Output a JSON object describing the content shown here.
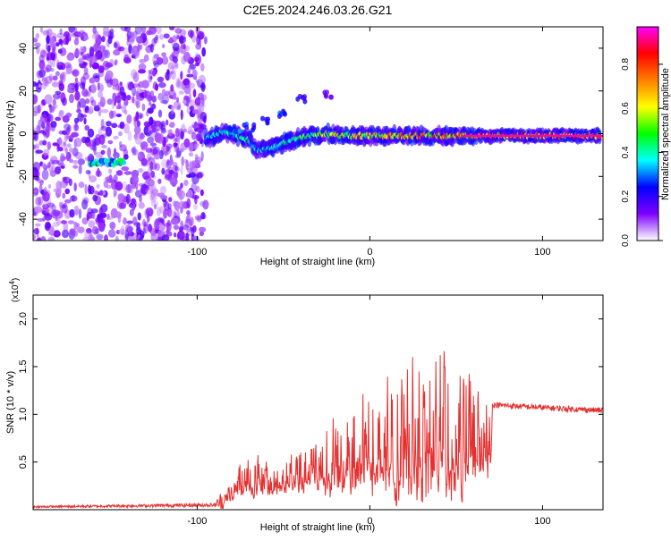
{
  "page_title": "C2E5.2024.246.03.26.G21",
  "chart_data": [
    {
      "type": "heatmap",
      "xlabel": "Height of straight line (km)",
      "ylabel": "Frequency (Hz)",
      "xlim": [
        -195,
        135
      ],
      "ylim": [
        -50,
        50
      ],
      "x_ticks": [
        -100,
        0,
        100
      ],
      "y_ticks": [
        -40,
        -20,
        0,
        20,
        40
      ],
      "grid": false,
      "colorbar": {
        "label": "Normalized spectral amplitude",
        "range": [
          0.0,
          0.97
        ],
        "ticks": [
          "0.0",
          "0.2",
          "0.4",
          "0.6",
          "0.8"
        ],
        "colors": [
          "#ffffff",
          "#7f00ff",
          "#0000ff",
          "#00ffff",
          "#00ff00",
          "#ffff00",
          "#ff7f00",
          "#ff0000",
          "#ff00ff"
        ]
      },
      "ridge": [
        {
          "x": -160,
          "f": -13,
          "amp": 0.45
        },
        {
          "x": -150,
          "f": -13,
          "amp": 0.45
        },
        {
          "x": -145,
          "f": -14,
          "amp": 0.5
        },
        {
          "x": -90,
          "f": -1,
          "amp": 0.4
        },
        {
          "x": -85,
          "f": 1,
          "amp": 0.55
        },
        {
          "x": -80,
          "f": 0,
          "amp": 0.45
        },
        {
          "x": -70,
          "f": -3,
          "amp": 0.5
        },
        {
          "x": -65,
          "f": -8,
          "amp": 0.4
        },
        {
          "x": -55,
          "f": -6,
          "amp": 0.45
        },
        {
          "x": -45,
          "f": -3,
          "amp": 0.5
        },
        {
          "x": -35,
          "f": -1,
          "amp": 0.6
        },
        {
          "x": -25,
          "f": 0,
          "amp": 0.65
        },
        {
          "x": -15,
          "f": -1,
          "amp": 0.7
        },
        {
          "x": 0,
          "f": -1,
          "amp": 0.75
        },
        {
          "x": 15,
          "f": -1,
          "amp": 0.8
        },
        {
          "x": 30,
          "f": -1,
          "amp": 0.85
        },
        {
          "x": 45,
          "f": -1,
          "amp": 0.85
        },
        {
          "x": 60,
          "f": -1,
          "amp": 0.9
        },
        {
          "x": 80,
          "f": -1,
          "amp": 0.9
        },
        {
          "x": 100,
          "f": -1,
          "amp": 0.9
        },
        {
          "x": 120,
          "f": -1,
          "amp": 0.9
        },
        {
          "x": 133,
          "f": -1,
          "amp": 0.9
        }
      ],
      "noise_region_x": [
        -195,
        -95
      ],
      "side_features": [
        {
          "x": -78,
          "f": 2,
          "amp": 0.4
        },
        {
          "x": -70,
          "f": 3,
          "amp": 0.3
        },
        {
          "x": -60,
          "f": 6,
          "amp": 0.3
        },
        {
          "x": -50,
          "f": 9,
          "amp": 0.3
        },
        {
          "x": -40,
          "f": 16,
          "amp": 0.25
        },
        {
          "x": -25,
          "f": 18,
          "amp": 0.2
        }
      ]
    },
    {
      "type": "line",
      "xlabel": "Height of straight line (km)",
      "ylabel": "SNR (10 * v/v)",
      "y_multiplier_label": "(x10",
      "y_multiplier_exp": "4",
      "xlim": [
        -195,
        135
      ],
      "ylim": [
        0,
        2.25
      ],
      "x_ticks": [
        -100,
        0,
        100
      ],
      "y_ticks": [
        "0.5",
        "1.0",
        "1.5",
        "2.0"
      ],
      "grid": false,
      "series": [
        {
          "color": "#e53030",
          "envelope": [
            {
              "x": -195,
              "base": 0.03,
              "amp": 0.01
            },
            {
              "x": -90,
              "base": 0.05,
              "amp": 0.02
            },
            {
              "x": -82,
              "base": 0.12,
              "amp": 0.2
            },
            {
              "x": -72,
              "base": 0.25,
              "amp": 0.55
            },
            {
              "x": -60,
              "base": 0.2,
              "amp": 0.35
            },
            {
              "x": -45,
              "base": 0.25,
              "amp": 0.45
            },
            {
              "x": -30,
              "base": 0.3,
              "amp": 0.5
            },
            {
              "x": -20,
              "base": 0.3,
              "amp": 0.95
            },
            {
              "x": -10,
              "base": 0.35,
              "amp": 1.0
            },
            {
              "x": 5,
              "base": 0.4,
              "amp": 1.1
            },
            {
              "x": 20,
              "base": 0.4,
              "amp": 1.45
            },
            {
              "x": 32,
              "base": 0.45,
              "amp": 1.75
            },
            {
              "x": 45,
              "base": 0.45,
              "amp": 1.5
            },
            {
              "x": 60,
              "base": 0.45,
              "amp": 1.25
            },
            {
              "x": 70,
              "base": 0.5,
              "amp": 0.9
            },
            {
              "x": 71,
              "base": 1.1,
              "amp": 0.03
            },
            {
              "x": 100,
              "base": 1.07,
              "amp": 0.03
            },
            {
              "x": 135,
              "base": 1.04,
              "amp": 0.03
            }
          ]
        }
      ]
    }
  ]
}
